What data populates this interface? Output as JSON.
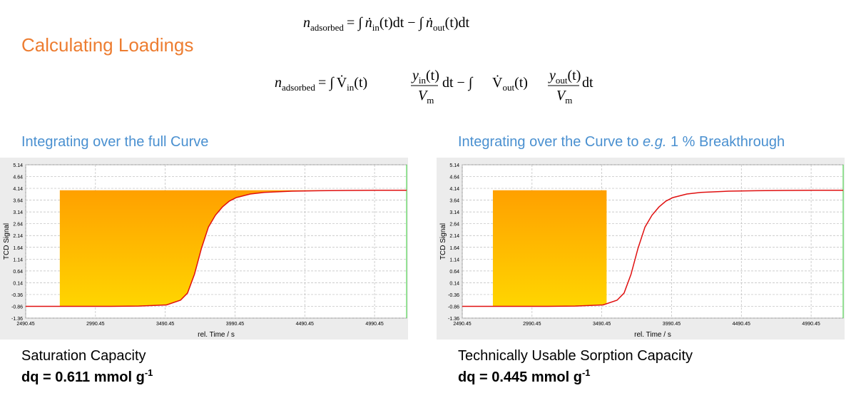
{
  "title": "Calculating Loadings",
  "equations": [
    {
      "n": "n",
      "n_sub": "adsorbed",
      "a": "= ∫",
      "f1": "ṅ",
      "f1_sub": "in",
      "b": "(t)dt − ∫",
      "f2": "ṅ",
      "f2_sub": "out",
      "c": "(t)dt"
    },
    {
      "n": "n",
      "n_sub": "adsorbed",
      "a": "= ∫",
      "v1": "V̇",
      "v1_sub": "in",
      "t1": "(t)",
      "num1": "y",
      "num1_sub": "in",
      "num1_t": "(t)",
      "den": "V",
      "den_sub": "m",
      "b": "dt − ∫",
      "v2": "V̇",
      "v2_sub": "out",
      "t2": "(t)",
      "num2": "y",
      "num2_sub": "out",
      "num2_t": "(t)",
      "c": "dt"
    }
  ],
  "chart_data": [
    {
      "type": "line",
      "subtitle": [
        "Integrating over the full Curve"
      ],
      "x": [
        2490.45,
        2700,
        2900,
        3100,
        3300,
        3500,
        3600,
        3650,
        3700,
        3750,
        3800,
        3850,
        3900,
        3950,
        4000,
        4100,
        4200,
        4400,
        4600,
        4800,
        5000,
        5220
      ],
      "series": [
        {
          "color": "#e01010",
          "values": [
            -0.86,
            -0.86,
            -0.86,
            -0.86,
            -0.85,
            -0.8,
            -0.6,
            -0.3,
            0.5,
            1.6,
            2.5,
            3.0,
            3.35,
            3.6,
            3.75,
            3.9,
            3.97,
            4.02,
            4.04,
            4.05,
            4.06,
            4.06
          ]
        }
      ],
      "fill_range": [
        2735,
        5220
      ],
      "fill_top": 4.06,
      "xlim": [
        2490.45,
        5220
      ],
      "ylim": [
        -1.36,
        5.14
      ],
      "xticks": [
        2490.45,
        2990.45,
        3490.45,
        3990.45,
        4490.45,
        4990.45
      ],
      "yticks": [
        -1.36,
        -0.86,
        -0.36,
        0.14,
        0.64,
        1.14,
        1.64,
        2.14,
        2.64,
        3.14,
        3.64,
        4.14,
        4.64,
        5.14
      ],
      "xlabel": "rel. Time / s",
      "ylabel": "TCD Signal",
      "grid": true,
      "caption": "Saturation Capacity",
      "result": "dq = 0.611 mmol g",
      "result_sup": "-1"
    },
    {
      "type": "line",
      "subtitle": [
        "Integrating over the Curve to ",
        "e.g.",
        " 1 % Breakthrough"
      ],
      "x": [
        2490.45,
        2700,
        2900,
        3100,
        3300,
        3500,
        3600,
        3650,
        3700,
        3750,
        3800,
        3850,
        3900,
        3950,
        4000,
        4100,
        4200,
        4400,
        4600,
        4800,
        5000,
        5220
      ],
      "series": [
        {
          "color": "#e01010",
          "values": [
            -0.86,
            -0.86,
            -0.86,
            -0.86,
            -0.85,
            -0.8,
            -0.6,
            -0.3,
            0.5,
            1.6,
            2.5,
            3.0,
            3.35,
            3.6,
            3.75,
            3.9,
            3.97,
            4.02,
            4.04,
            4.05,
            4.06,
            4.06
          ]
        }
      ],
      "fill_range": [
        2710,
        3525
      ],
      "fill_top": 4.06,
      "xlim": [
        2490.45,
        5220
      ],
      "ylim": [
        -1.36,
        5.14
      ],
      "xticks": [
        2490.45,
        2990.45,
        3490.45,
        3990.45,
        4490.45,
        4990.45
      ],
      "yticks": [
        -1.36,
        -0.86,
        -0.36,
        0.14,
        0.64,
        1.14,
        1.64,
        2.14,
        2.64,
        3.14,
        3.64,
        4.14,
        4.64,
        5.14
      ],
      "xlabel": "rel. Time / s",
      "ylabel": "TCD Signal",
      "grid": true,
      "caption": "Technically Usable Sorption Capacity",
      "result": "dq = 0.445 mmol g",
      "result_sup": "-1"
    }
  ]
}
